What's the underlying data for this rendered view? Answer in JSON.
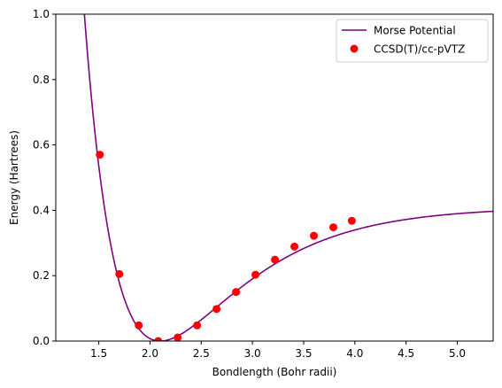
{
  "chart_data": {
    "type": "line",
    "xlabel": "Bondlength (Bohr radii)",
    "ylabel": "Energy (Hartrees)",
    "xlim": [
      1.08,
      5.35
    ],
    "ylim": [
      0.0,
      1.0
    ],
    "x_ticks": [
      "1.5",
      "2.0",
      "2.5",
      "3.0",
      "3.5",
      "4.0",
      "4.5",
      "5.0"
    ],
    "y_ticks": [
      "0.0",
      "0.2",
      "0.4",
      "0.6",
      "0.8",
      "1.0"
    ],
    "grid": false,
    "legend_position": "top-right",
    "series": [
      {
        "name": "Morse Potential",
        "kind": "line",
        "color": "#800080",
        "model": "morse",
        "De": 0.41,
        "a": 1.27,
        "re": 2.1,
        "x_range": [
          1.08,
          5.35
        ]
      },
      {
        "name": "CCSD(T)/cc-pVTZ",
        "kind": "scatter",
        "color": "#ff0000",
        "x": [
          1.51,
          1.7,
          1.89,
          2.08,
          2.27,
          2.46,
          2.65,
          2.84,
          3.03,
          3.22,
          3.41,
          3.6,
          3.79,
          3.97
        ],
        "y": [
          0.57,
          0.205,
          0.048,
          0.0,
          0.011,
          0.048,
          0.098,
          0.15,
          0.203,
          0.249,
          0.289,
          0.322,
          0.348,
          0.368
        ]
      }
    ]
  }
}
